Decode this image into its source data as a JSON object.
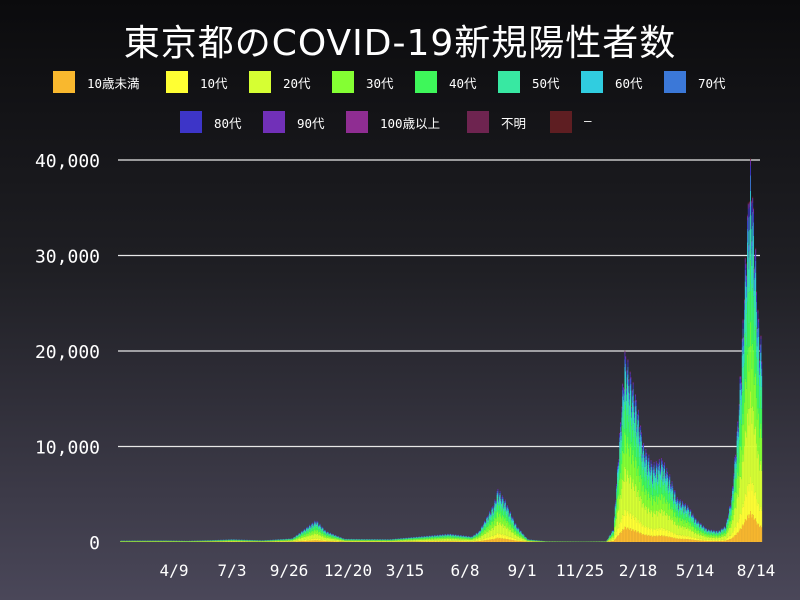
{
  "title": "東京都のCOVID-19新規陽性者数",
  "chart_data": {
    "type": "bar",
    "stacked": true,
    "title": "東京都のCOVID-19新規陽性者数",
    "xlabel": "",
    "ylabel": "",
    "ylim": [
      0,
      40000
    ],
    "y_ticks": [
      0,
      10000,
      20000,
      30000,
      40000
    ],
    "y_tick_labels": [
      "0",
      "10,000",
      "20,000",
      "30,000",
      "40,000"
    ],
    "x_tick_labels": [
      "4/9",
      "7/3",
      "9/26",
      "12/20",
      "3/15",
      "6/8",
      "9/1",
      "11/25",
      "2/18",
      "5/14",
      "8/14"
    ],
    "grid": "horizontal",
    "legend_position": "top",
    "series_order": [
      "10歳未満",
      "10代",
      "20代",
      "30代",
      "40代",
      "50代",
      "60代",
      "70代",
      "80代",
      "90代",
      "100歳以上",
      "不明",
      "–"
    ],
    "series_colors": {
      "10歳未満": "#f9b82e",
      "10代": "#ffff33",
      "20代": "#d6ff33",
      "30代": "#84ff33",
      "40代": "#3ef75a",
      "50代": "#38e8a2",
      "60代": "#30cde0",
      "70代": "#3b78d8",
      "80代": "#3d35c8",
      "90代": "#7130b8",
      "100歳以上": "#8f2d92",
      "不明": "#6e2450",
      "–": "#5e1e22"
    },
    "total_daily_approx": [
      {
        "date": "4/9",
        "value": 150
      },
      {
        "date": "7/3",
        "value": 120
      },
      {
        "date": "9/26",
        "value": 200
      },
      {
        "date": "12/20",
        "value": 550
      },
      {
        "date": "1/7",
        "value": 2500
      },
      {
        "date": "3/15",
        "value": 300
      },
      {
        "date": "6/8",
        "value": 450
      },
      {
        "date": "8/13",
        "value": 5900
      },
      {
        "date": "9/1",
        "value": 2500
      },
      {
        "date": "11/25",
        "value": 80
      },
      {
        "date": "2/2",
        "value": 21500
      },
      {
        "date": "2/18",
        "value": 17000
      },
      {
        "date": "4/10",
        "value": 8800
      },
      {
        "date": "5/14",
        "value": 3600
      },
      {
        "date": "6/20",
        "value": 1300
      },
      {
        "date": "7/20",
        "value": 20000
      },
      {
        "date": "7/28",
        "value": 40400
      },
      {
        "date": "8/14",
        "value": 22000
      }
    ]
  },
  "legend": [
    {
      "label": "10歳未満",
      "color": "#f9b82e"
    },
    {
      "label": "10代",
      "color": "#ffff33"
    },
    {
      "label": "20代",
      "color": "#d6ff33"
    },
    {
      "label": "30代",
      "color": "#84ff33"
    },
    {
      "label": "40代",
      "color": "#3ef75a"
    },
    {
      "label": "50代",
      "color": "#38e8a2"
    },
    {
      "label": "60代",
      "color": "#30cde0"
    },
    {
      "label": "70代",
      "color": "#3b78d8"
    },
    {
      "label": "80代",
      "color": "#3d35c8"
    },
    {
      "label": "90代",
      "color": "#7130b8"
    },
    {
      "label": "100歳以上",
      "color": "#8f2d92"
    },
    {
      "label": "不明",
      "color": "#6e2450"
    },
    {
      "label": "–",
      "color": "#5e1e22"
    }
  ]
}
